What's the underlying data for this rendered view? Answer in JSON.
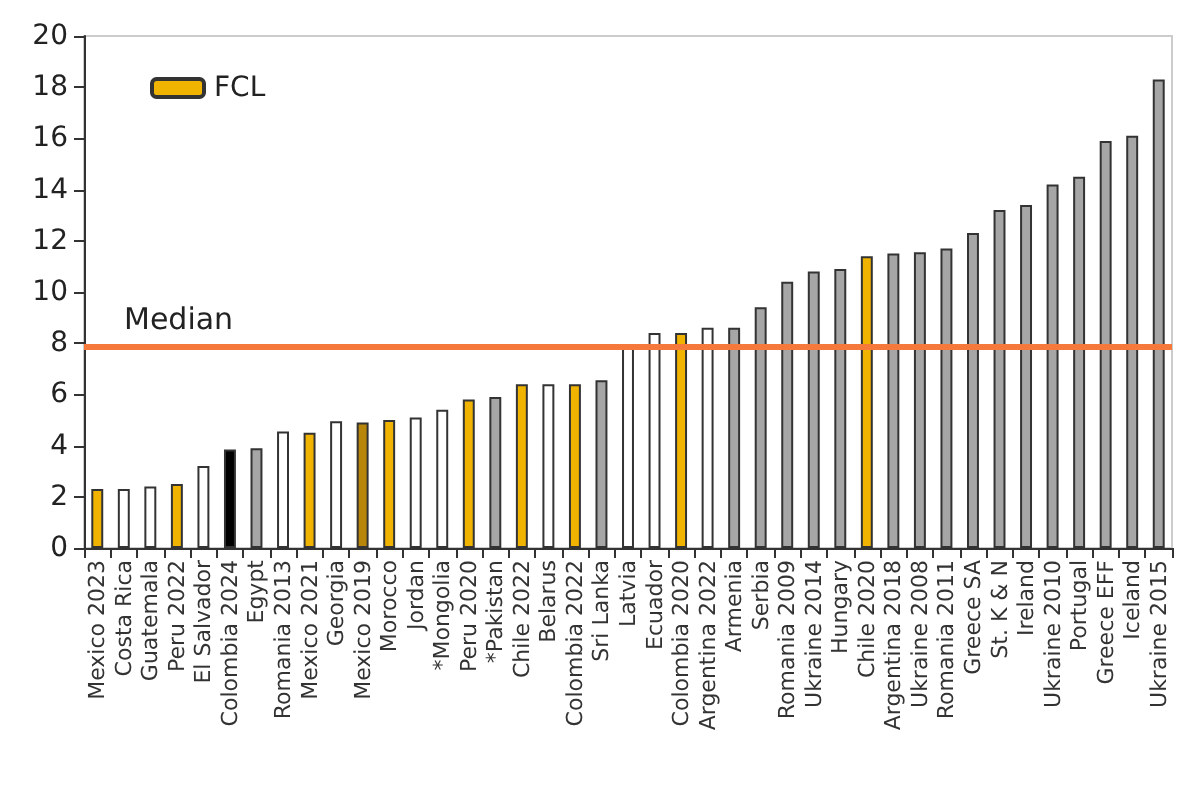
{
  "chart_data": {
    "type": "bar",
    "categories": [
      "Mexico 2023",
      "Costa Rica",
      "Guatemala",
      "Peru 2022",
      "El Salvador",
      "Colombia 2024",
      "Egypt",
      "Romania 2013",
      "Mexico 2021",
      "Georgia",
      "Mexico 2019",
      "Morocco",
      "Jordan",
      "*Mongolia",
      "Peru 2020",
      "*Pakistan",
      "Chile 2022",
      "Belarus",
      "Colombia 2022",
      "Sri Lanka",
      "Latvia",
      "Ecuador",
      "Colombia 2020",
      "Argentina 2022",
      "Armenia",
      "Serbia",
      "Romania 2009",
      "Ukraine 2014",
      "Hungary",
      "Chile 2020",
      "Argentina 2018",
      "Ukraine 2008",
      "Romania 2011",
      "Greece SA",
      "St. K & N",
      "Ireland",
      "Ukraine 2010",
      "Portugal",
      "Greece EFF",
      "Iceland",
      "Ukraine 2015"
    ],
    "series": [
      {
        "name": "FCL",
        "color": "#f0b400",
        "values": [
          2.3,
          null,
          null,
          2.5,
          null,
          null,
          null,
          null,
          4.5,
          null,
          4.9,
          5.0,
          null,
          null,
          5.8,
          null,
          6.4,
          null,
          6.4,
          null,
          null,
          null,
          8.4,
          null,
          null,
          null,
          null,
          null,
          null,
          11.4,
          null,
          null,
          null,
          null,
          null,
          null,
          null,
          null,
          null,
          null,
          null
        ],
        "colors": [
          "#f0b400",
          null,
          null,
          "#f0b400",
          null,
          null,
          null,
          null,
          "#f0b400",
          null,
          "#b8860b",
          "#f0b400",
          null,
          null,
          "#f0b400",
          null,
          "#f0b400",
          null,
          "#f0b400",
          null,
          null,
          null,
          "#f0b400",
          null,
          null,
          null,
          null,
          null,
          null,
          "#f0b400",
          null,
          null,
          null,
          null,
          null,
          null,
          null,
          null,
          null,
          null,
          null
        ]
      },
      {
        "color": "#ffffff",
        "values": [
          null,
          2.3,
          2.4,
          null,
          3.2,
          3.85,
          3.9,
          4.55,
          null,
          4.95,
          null,
          null,
          5.1,
          5.4,
          null,
          5.9,
          null,
          6.4,
          null,
          6.55,
          7.9,
          8.4,
          null,
          8.6,
          8.6,
          9.4,
          10.4,
          10.8,
          10.9,
          null,
          11.5,
          11.55,
          11.7,
          12.3,
          13.2,
          13.4,
          14.2,
          14.5,
          15.9,
          16.1,
          18.3
        ],
        "colors": [
          null,
          "#ffffff",
          "#ffffff",
          null,
          "#ffffff",
          "#000000",
          "#a6a6a6",
          "#ffffff",
          null,
          "#ffffff",
          null,
          null,
          "#ffffff",
          "#ffffff",
          null,
          "#a6a6a6",
          null,
          "#ffffff",
          null,
          "#a6a6a6",
          "#ffffff",
          "#ffffff",
          null,
          "#ffffff",
          "#a6a6a6",
          "#a6a6a6",
          "#a6a6a6",
          "#a6a6a6",
          "#a6a6a6",
          null,
          "#a6a6a6",
          "#a6a6a6",
          "#a6a6a6",
          "#a6a6a6",
          "#a6a6a6",
          "#a6a6a6",
          "#a6a6a6",
          "#a6a6a6",
          "#a6a6a6",
          "#a6a6a6",
          "#a6a6a6"
        ]
      }
    ],
    "ylim": [
      0,
      20
    ],
    "yticks": [
      0,
      2,
      4,
      6,
      8,
      10,
      12,
      14,
      16,
      18,
      20
    ],
    "ref_lines": [
      {
        "axis": "y",
        "value": 7.9,
        "label": "Median",
        "color": "#f4793b"
      }
    ],
    "grid": false,
    "legend": "top left"
  }
}
